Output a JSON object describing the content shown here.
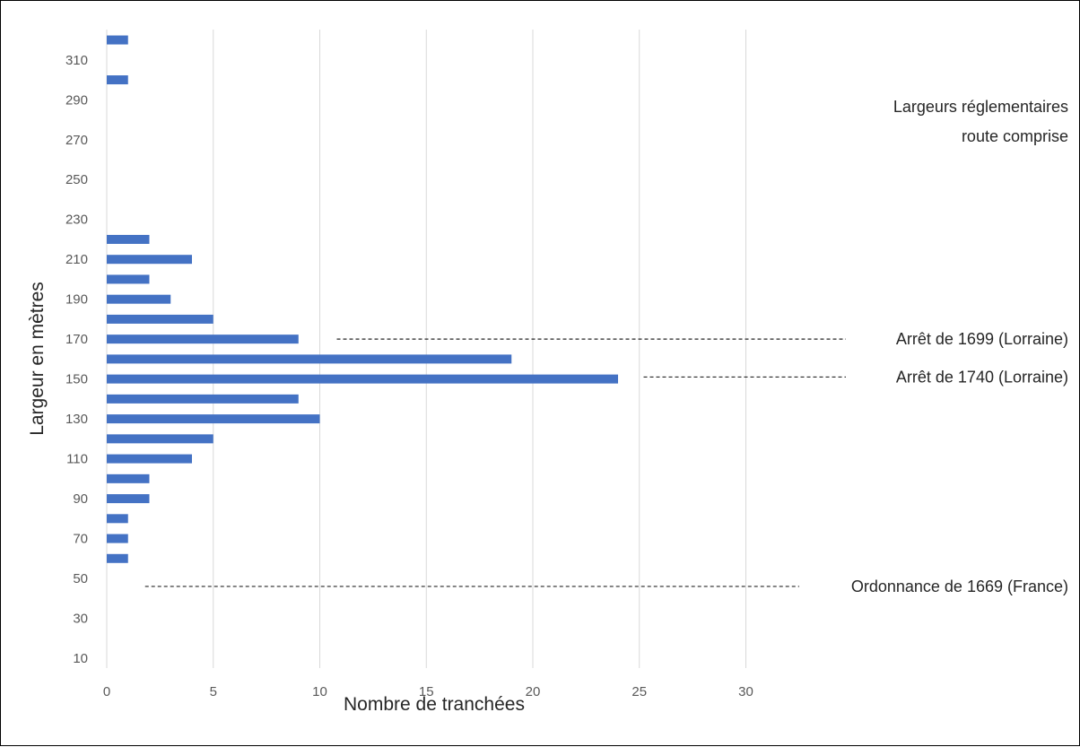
{
  "chart_data": {
    "type": "bar",
    "orientation": "horizontal",
    "xlabel": "Nombre de tranchées",
    "ylabel": "Largeur en mètres",
    "xlim": [
      0,
      30
    ],
    "x_ticks": [
      "0",
      "5",
      "10",
      "15",
      "20",
      "25",
      "30"
    ],
    "y_ticks": [
      "10",
      "30",
      "50",
      "70",
      "90",
      "110",
      "130",
      "150",
      "170",
      "190",
      "210",
      "230",
      "250",
      "270",
      "290",
      "310"
    ],
    "grid": "vertical",
    "bar_color": "#4472c4",
    "bars": [
      {
        "y": 60,
        "value": 1
      },
      {
        "y": 70,
        "value": 1
      },
      {
        "y": 80,
        "value": 1
      },
      {
        "y": 90,
        "value": 2
      },
      {
        "y": 100,
        "value": 2
      },
      {
        "y": 110,
        "value": 4
      },
      {
        "y": 120,
        "value": 5
      },
      {
        "y": 130,
        "value": 10
      },
      {
        "y": 140,
        "value": 9
      },
      {
        "y": 150,
        "value": 24
      },
      {
        "y": 160,
        "value": 19
      },
      {
        "y": 170,
        "value": 9
      },
      {
        "y": 180,
        "value": 5
      },
      {
        "y": 190,
        "value": 3
      },
      {
        "y": 200,
        "value": 2
      },
      {
        "y": 210,
        "value": 4
      },
      {
        "y": 220,
        "value": 2
      },
      {
        "y": 300,
        "value": 1
      },
      {
        "y": 320,
        "value": 1
      }
    ],
    "legend_title": [
      "Largeurs réglementaires",
      "route comprise"
    ],
    "annotations": [
      {
        "label": "Arrêt de 1699 (Lorraine)",
        "y": 170,
        "x_start": 10.8
      },
      {
        "label": "Arrêt de 1740 (Lorraine)",
        "y": 151,
        "x_start": 25.2
      },
      {
        "label": "Ordonnance de 1669 (France)",
        "y": 46,
        "x_start": 1.8
      }
    ]
  }
}
